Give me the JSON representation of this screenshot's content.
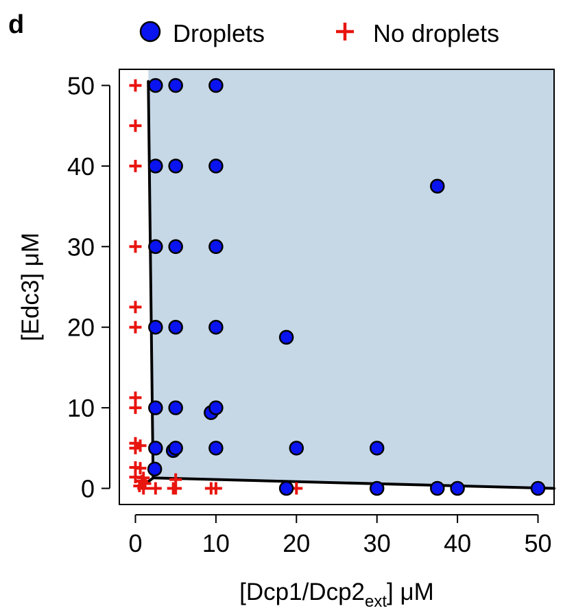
{
  "panel_label": "d",
  "colors": {
    "region_fill": "#c6d7e6",
    "droplet_fill": "#0a14f0",
    "no_droplet": "#e8140e",
    "boundary": "#000000"
  },
  "chart_data": {
    "type": "scatter",
    "xlabel": {
      "prefix": "[Dcp1/Dcp2",
      "subscript": "ext",
      "suffix": "] μM"
    },
    "ylabel": "[Edc3] μM",
    "xlim": [
      -2,
      52
    ],
    "ylim": [
      -2,
      52
    ],
    "x_ticks": [
      0,
      10,
      20,
      30,
      40,
      50
    ],
    "y_ticks": [
      0,
      10,
      20,
      30,
      40,
      50
    ],
    "x_tick_labels": [
      "0",
      "10",
      "20",
      "30",
      "40",
      "50"
    ],
    "y_tick_labels": [
      "0",
      "10",
      "20",
      "30",
      "40",
      "50"
    ],
    "grid": false,
    "legend_position": "top",
    "series": [
      {
        "name": "Droplets",
        "marker": "circle",
        "points": [
          [
            2.5,
            50
          ],
          [
            5,
            50
          ],
          [
            10,
            50
          ],
          [
            2.5,
            40
          ],
          [
            5,
            40
          ],
          [
            10,
            40
          ],
          [
            37.5,
            37.5
          ],
          [
            2.5,
            30
          ],
          [
            5,
            30
          ],
          [
            10,
            30
          ],
          [
            2.5,
            20
          ],
          [
            5,
            20
          ],
          [
            10,
            20
          ],
          [
            18.75,
            18.75
          ],
          [
            2.5,
            10
          ],
          [
            5,
            10
          ],
          [
            9.4,
            9.4
          ],
          [
            10,
            10
          ],
          [
            2.5,
            5
          ],
          [
            4.7,
            4.7
          ],
          [
            5,
            5
          ],
          [
            10,
            5
          ],
          [
            20,
            5
          ],
          [
            30,
            5
          ],
          [
            2.4,
            2.4
          ],
          [
            18.75,
            0
          ],
          [
            30,
            0
          ],
          [
            37.5,
            0
          ],
          [
            40,
            0
          ],
          [
            50,
            0
          ]
        ]
      },
      {
        "name": "No droplets",
        "marker": "plus",
        "points": [
          [
            0,
            50
          ],
          [
            0,
            45
          ],
          [
            0,
            40
          ],
          [
            0,
            30
          ],
          [
            0,
            22.5
          ],
          [
            0,
            20
          ],
          [
            0,
            11.25
          ],
          [
            0,
            10
          ],
          [
            0,
            5.6
          ],
          [
            0.6,
            5.3
          ],
          [
            0,
            5
          ],
          [
            0,
            2.6
          ],
          [
            0.6,
            2.5
          ],
          [
            0,
            1.4
          ],
          [
            1,
            1.3
          ],
          [
            0.8,
            0.9
          ],
          [
            1.2,
            0.6
          ],
          [
            0.5,
            0.3
          ],
          [
            1,
            0
          ],
          [
            2.5,
            0
          ],
          [
            4.7,
            0
          ],
          [
            5,
            1.1
          ],
          [
            5,
            0
          ],
          [
            9.4,
            0
          ],
          [
            10,
            0
          ],
          [
            20,
            0
          ]
        ]
      }
    ],
    "boundary_lines": [
      {
        "points": [
          [
            1.6,
            50.5
          ],
          [
            2.2,
            1.3
          ]
        ]
      },
      {
        "points": [
          [
            2.2,
            1.3
          ],
          [
            1.3,
            0.6
          ]
        ]
      },
      {
        "points": [
          [
            2.2,
            1.3
          ],
          [
            52,
            0
          ]
        ]
      }
    ],
    "shaded_region": [
      [
        1.6,
        52
      ],
      [
        52,
        52
      ],
      [
        52,
        0
      ],
      [
        2.2,
        1.3
      ]
    ]
  }
}
